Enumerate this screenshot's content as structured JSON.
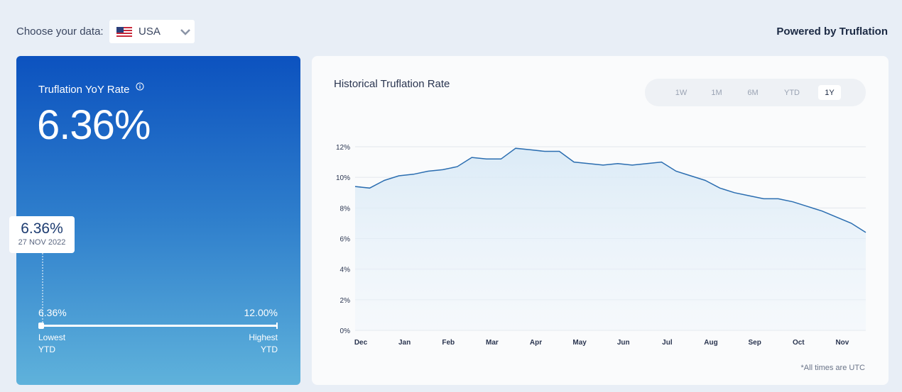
{
  "header": {
    "choose_label": "Choose your data:",
    "country": "USA",
    "powered_by": "Powered by Truflation"
  },
  "summary": {
    "label": "Truflation YoY Rate",
    "value": "6.36%",
    "tooltip": {
      "value": "6.36%",
      "date": "27 NOV 2022"
    },
    "range": {
      "low": "6.36%",
      "high": "12.00%",
      "low_label": "Lowest",
      "high_label": "Highest",
      "low_sub": "YTD",
      "high_sub": "YTD"
    }
  },
  "range_buttons": [
    "1W",
    "1M",
    "6M",
    "YTD",
    "1Y"
  ],
  "selected_range": "1Y",
  "chart_data": {
    "type": "line",
    "title": "Historical Truflation Rate",
    "note": "*All times are UTC",
    "categories": [
      "Dec",
      null,
      null,
      "Jan",
      null,
      null,
      "Feb",
      null,
      null,
      "Mar",
      null,
      null,
      "Apr",
      null,
      null,
      "May",
      null,
      null,
      "Jun",
      null,
      null,
      "Jul",
      null,
      null,
      "Aug",
      null,
      null,
      "Sep",
      null,
      null,
      "Oct",
      null,
      null,
      "Nov",
      null,
      null
    ],
    "values": [
      9.4,
      9.3,
      9.8,
      10.1,
      10.2,
      10.4,
      10.5,
      10.7,
      11.3,
      11.2,
      11.2,
      11.9,
      11.8,
      11.7,
      11.7,
      11.0,
      10.9,
      10.8,
      10.9,
      10.8,
      10.9,
      11.0,
      10.4,
      10.1,
      9.8,
      9.3,
      9.0,
      8.8,
      8.6,
      8.6,
      8.4,
      8.1,
      7.8,
      7.4,
      7.0,
      6.4
    ],
    "color": "#2a6db0",
    "ylim": [
      0,
      12
    ],
    "yticks": [
      {
        "value": 0,
        "label": "0%"
      },
      {
        "value": 2,
        "label": "2%"
      },
      {
        "value": 4,
        "label": "4%"
      },
      {
        "value": 6,
        "label": "6%"
      },
      {
        "value": 8,
        "label": "8%"
      },
      {
        "value": 10,
        "label": "10%"
      },
      {
        "value": 12,
        "label": "12%"
      }
    ],
    "grid": true
  }
}
